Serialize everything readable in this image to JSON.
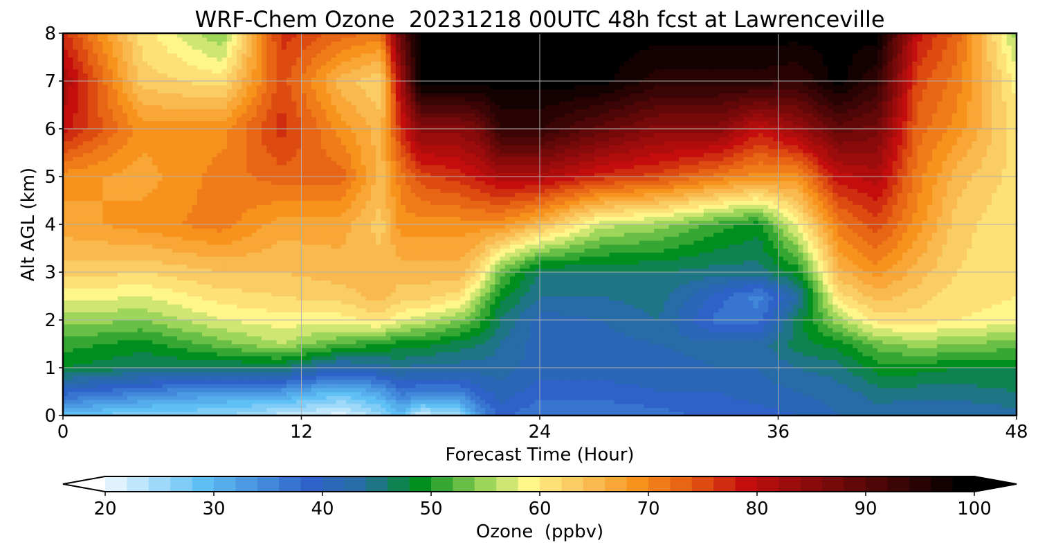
{
  "chart_data": {
    "type": "heatmap",
    "title": "WRF-Chem Ozone  20231218 00UTC 48h fcst at Lawrenceville",
    "xlabel": "Forecast Time (Hour)",
    "ylabel": "Alt AGL (km)",
    "xlim": [
      0,
      48
    ],
    "ylim": [
      0,
      8
    ],
    "xticks": [
      "0",
      "12",
      "24",
      "36",
      "48"
    ],
    "yticks": [
      "0",
      "1",
      "2",
      "3",
      "4",
      "5",
      "6",
      "7",
      "8"
    ],
    "grid": true,
    "colorbar": {
      "label": "Ozone  (ppbv)",
      "min": 20,
      "max": 100,
      "ticks": [
        "20",
        "30",
        "40",
        "50",
        "60",
        "70",
        "80",
        "90",
        "100"
      ],
      "extend": "both",
      "colors": [
        {
          "v": 20,
          "c": "#ffffff"
        },
        {
          "v": 30,
          "c": "#5fc0f5"
        },
        {
          "v": 40,
          "c": "#2e62c8"
        },
        {
          "v": 45,
          "c": "#256f9e"
        },
        {
          "v": 50,
          "c": "#008f1e"
        },
        {
          "v": 56,
          "c": "#9ed65a"
        },
        {
          "v": 60,
          "c": "#fff68a"
        },
        {
          "v": 65,
          "c": "#f9c25a"
        },
        {
          "v": 70,
          "c": "#f7931c"
        },
        {
          "v": 75,
          "c": "#e35a12"
        },
        {
          "v": 80,
          "c": "#c40e0e"
        },
        {
          "v": 90,
          "c": "#620808"
        },
        {
          "v": 100,
          "c": "#000000"
        }
      ]
    },
    "profiles": {
      "x": [
        0,
        4,
        8,
        11,
        14,
        16,
        17,
        18,
        20,
        21,
        22,
        24,
        27,
        30,
        33,
        35,
        37,
        39,
        41,
        43,
        45,
        48
      ],
      "alt": [
        0,
        0.5,
        1,
        1.5,
        2,
        2.5,
        3,
        4,
        5,
        6,
        7,
        8
      ],
      "values": [
        [
          30,
          40,
          49,
          52,
          56,
          60,
          64,
          68,
          70,
          80,
          83,
          78
        ],
        [
          27,
          37,
          47,
          50,
          55,
          59,
          63,
          70,
          68,
          70,
          64,
          62
        ],
        [
          27,
          34,
          47,
          54,
          59,
          62,
          65,
          72,
          72,
          70,
          62,
          55
        ],
        [
          24,
          34,
          47,
          57,
          60,
          63,
          65,
          68,
          74,
          78,
          76,
          78
        ],
        [
          22,
          30,
          42,
          53,
          60,
          64,
          66,
          68,
          74,
          70,
          66,
          74
        ],
        [
          26,
          33,
          44,
          51,
          62,
          66,
          66,
          64,
          66,
          66,
          63,
          72
        ],
        [
          30,
          38,
          45,
          50,
          59,
          64,
          66,
          70,
          72,
          78,
          83,
          90
        ],
        [
          23,
          37,
          44,
          50,
          58,
          64,
          66,
          70,
          76,
          86,
          100,
          100
        ],
        [
          26,
          37,
          44,
          48,
          55,
          62,
          66,
          70,
          78,
          86,
          100,
          100
        ],
        [
          35,
          40,
          44,
          47,
          52,
          56,
          62,
          70,
          80,
          88,
          100,
          100
        ],
        [
          40,
          42,
          44,
          45,
          47,
          50,
          54,
          70,
          82,
          95,
          100,
          100
        ],
        [
          37,
          40,
          42,
          42,
          42,
          45,
          47,
          66,
          82,
          95,
          100,
          100
        ],
        [
          37,
          40,
          42,
          42,
          43,
          45,
          47,
          58,
          78,
          90,
          100,
          100
        ],
        [
          38,
          41,
          42,
          43,
          45,
          46,
          47,
          56,
          76,
          86,
          96,
          100
        ],
        [
          40,
          41,
          43,
          44,
          38,
          40,
          46,
          52,
          72,
          86,
          96,
          100
        ],
        [
          40,
          42,
          43,
          44,
          38,
          36,
          46,
          50,
          70,
          80,
          96,
          100
        ],
        [
          41,
          43,
          45,
          48,
          48,
          44,
          50,
          60,
          70,
          84,
          95,
          100
        ],
        [
          43,
          44,
          46,
          50,
          56,
          62,
          66,
          72,
          80,
          90,
          100,
          100
        ],
        [
          44,
          46,
          50,
          54,
          62,
          66,
          70,
          76,
          82,
          88,
          95,
          100
        ],
        [
          43,
          46,
          50,
          56,
          62,
          64,
          66,
          70,
          72,
          74,
          76,
          80
        ],
        [
          43,
          46,
          49,
          55,
          61,
          62,
          63,
          64,
          66,
          70,
          72,
          74
        ],
        [
          44,
          47,
          49,
          54,
          60,
          61,
          61,
          61,
          62,
          62,
          60,
          56
        ]
      ]
    }
  }
}
